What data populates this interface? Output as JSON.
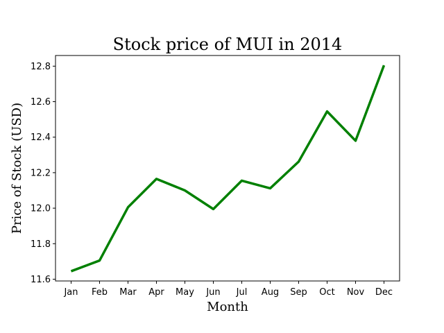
{
  "chart_data": {
    "type": "line",
    "title": "Stock price of MUI in 2014",
    "xlabel": "Month",
    "ylabel": "Price of Stock (USD)",
    "categories": [
      "Jan",
      "Feb",
      "Mar",
      "Apr",
      "May",
      "Jun",
      "Jul",
      "Aug",
      "Sep",
      "Oct",
      "Nov",
      "Dec"
    ],
    "series": [
      {
        "values": [
          11.645,
          11.705,
          12.005,
          12.165,
          12.1,
          11.995,
          12.155,
          12.112,
          12.262,
          12.545,
          12.38,
          12.805
        ],
        "color": "#008000"
      }
    ],
    "ylim": [
      11.59,
      12.86
    ],
    "yticks": [
      "11.6",
      "11.8",
      "12.0",
      "12.2",
      "12.4",
      "12.6",
      "12.8"
    ],
    "grid": false,
    "legend": false
  }
}
